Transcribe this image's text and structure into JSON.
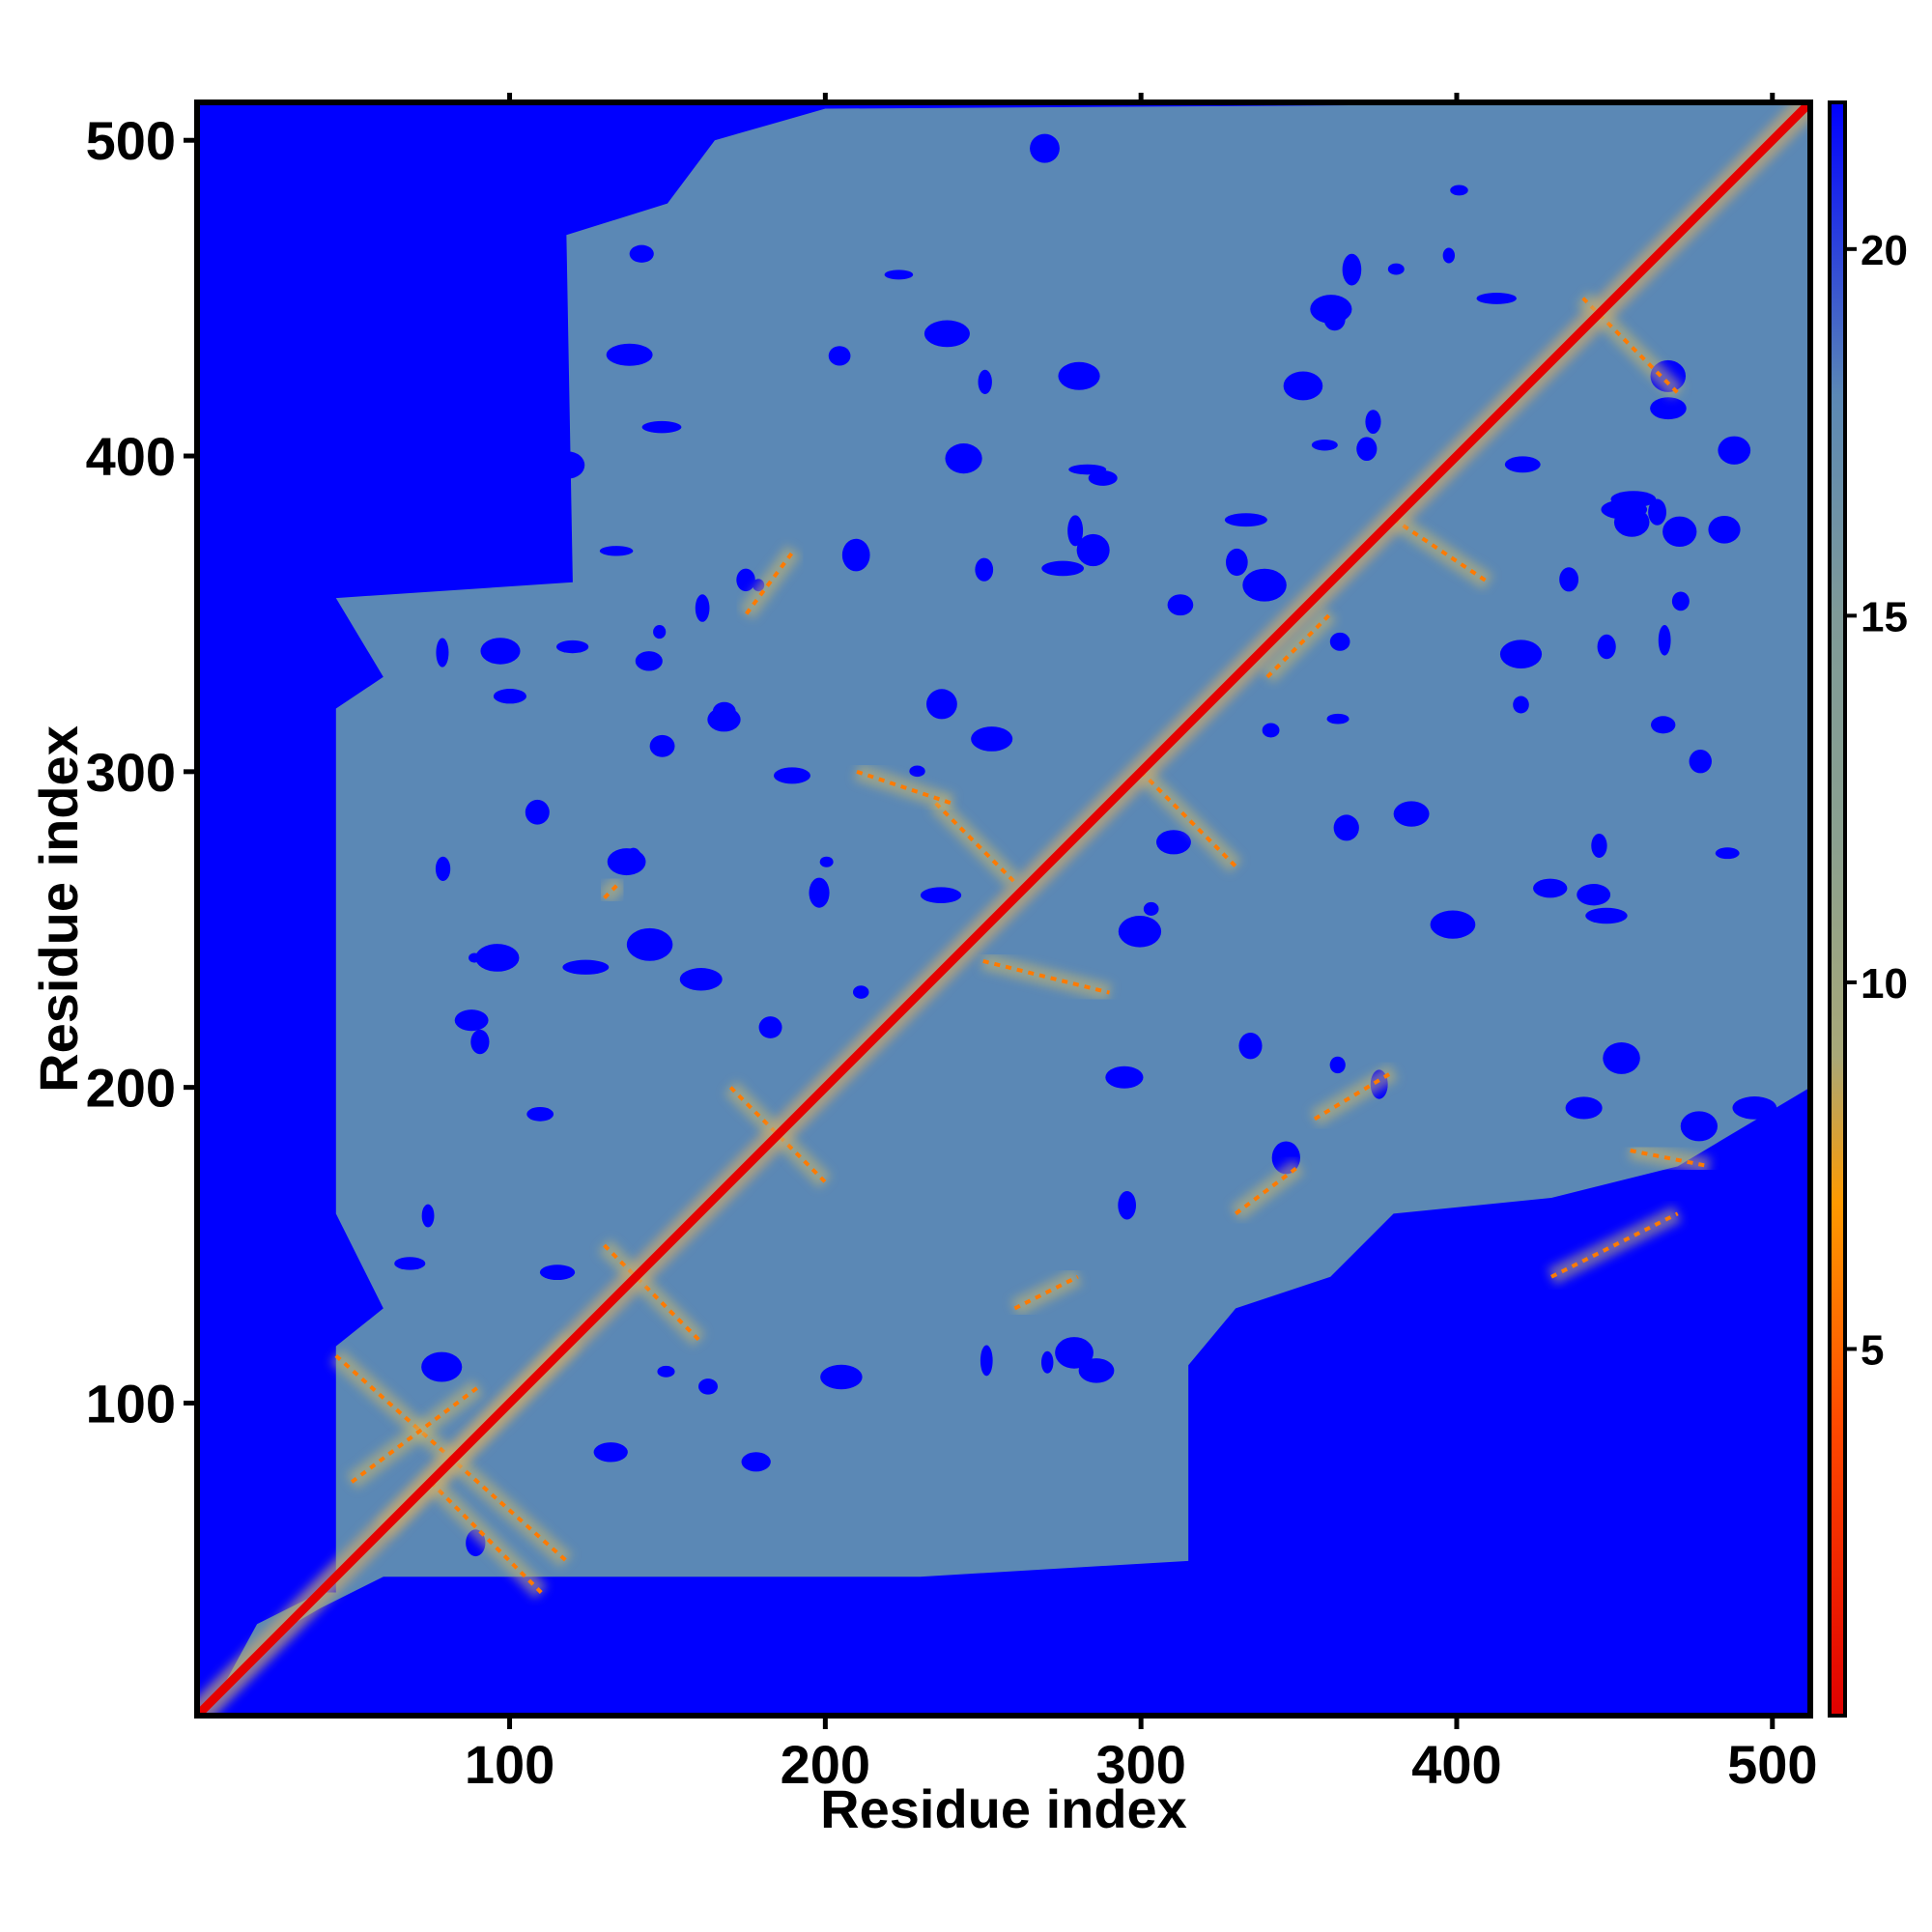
{
  "chart_data": {
    "type": "heatmap",
    "title": "",
    "xlabel": "Residue index",
    "ylabel": "Residue index",
    "xlim": [
      1,
      512
    ],
    "ylim": [
      1,
      512
    ],
    "x_ticks": [
      100,
      200,
      300,
      400,
      500
    ],
    "y_ticks": [
      100,
      200,
      300,
      400,
      500
    ],
    "colorbar": {
      "min": 0,
      "max": 22,
      "ticks": [
        5,
        10,
        15,
        20
      ],
      "stops": [
        {
          "value": 0,
          "color": "#e00000"
        },
        {
          "value": 4,
          "color": "#ff4a00"
        },
        {
          "value": 7,
          "color": "#ff9a00"
        },
        {
          "value": 9,
          "color": "#a8a878"
        },
        {
          "value": 12,
          "color": "#8aa090"
        },
        {
          "value": 15,
          "color": "#7f9a98"
        },
        {
          "value": 18,
          "color": "#5b88b5"
        },
        {
          "value": 22,
          "color": "#0000ff"
        }
      ]
    },
    "background_color": "#0000ff",
    "region_color": "#5b88b5",
    "diagonal_color": "#e60000",
    "contact_color": "#ff7a00"
  }
}
